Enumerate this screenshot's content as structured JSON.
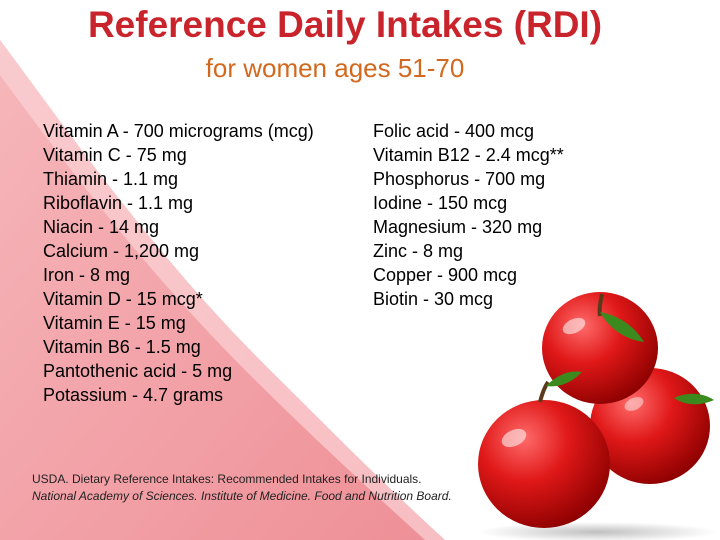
{
  "title": "Reference Daily Intakes (RDI)",
  "subtitle": "for women ages 51-70",
  "nutrients_left": [
    "Vitamin A - 700 micrograms (mcg)",
    "Vitamin C - 75 mg",
    "Thiamin - 1.1 mg",
    "Riboflavin - 1.1 mg",
    "Niacin - 14 mg",
    "Calcium - 1,200 mg",
    "Iron - 8 mg",
    "Vitamin D - 15 mcg*",
    "Vitamin E - 15 mg",
    "Vitamin B6 - 1.5 mg",
    "Pantothenic acid - 5 mg",
    "Potassium - 4.7 grams"
  ],
  "nutrients_right": [
    "Folic acid - 400 mcg",
    "Vitamin B12 - 2.4 mcg**",
    "Phosphorus - 700 mg",
    "Iodine - 150 mcg",
    "Magnesium - 320 mg",
    "Zinc - 8 mg",
    "Copper - 900 mcg",
    "Biotin - 30 mcg"
  ],
  "citation": {
    "line1": "USDA. Dietary Reference Intakes: Recommended Intakes for Individuals.",
    "line2": "National Academy of Sciences. Institute of Medicine. Food and Nutrition Board."
  },
  "decoration": {
    "image": "three-red-apples",
    "swoosh_color": "#f4a3a8"
  }
}
